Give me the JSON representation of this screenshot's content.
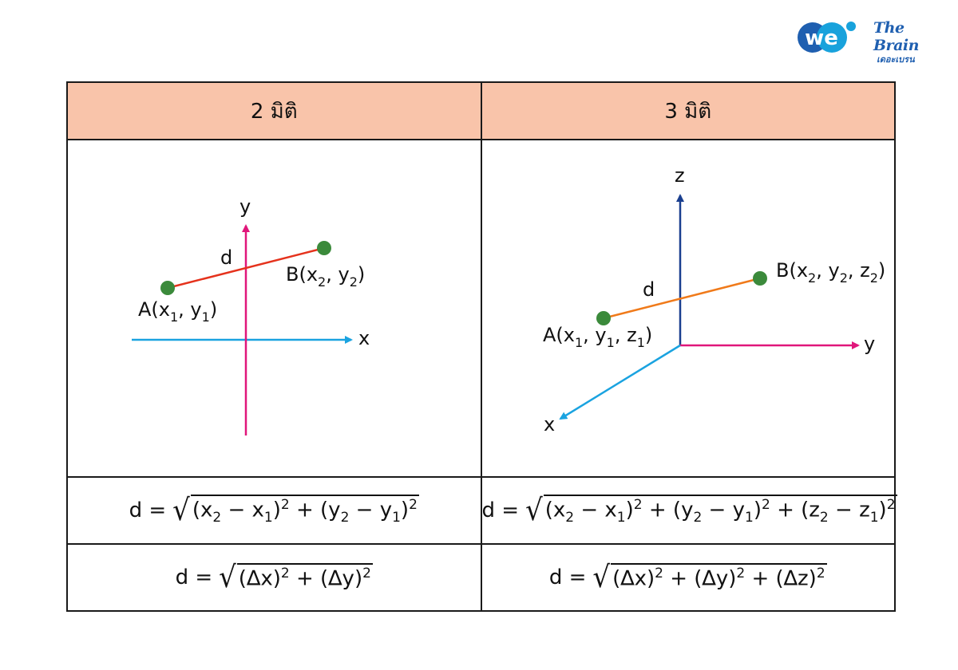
{
  "logos": {
    "we": "we",
    "brain_line1": "The Brain",
    "brain_line2": "เดอะเบรน"
  },
  "headers": [
    "2 มิติ",
    "3 มิติ"
  ],
  "diagram_2d": {
    "axis_x": "x",
    "axis_y": "y",
    "distance": "d",
    "point_a": {
      "prefix": "A(x",
      "sub1": "1",
      "mid": ", y",
      "sub2": "1",
      "suffix": ")"
    },
    "point_b": {
      "prefix": "B(x",
      "sub1": "2",
      "mid": ", y",
      "sub2": "2",
      "suffix": ")"
    }
  },
  "diagram_3d": {
    "axis_x": "x",
    "axis_y": "y",
    "axis_z": "z",
    "distance": "d",
    "point_a": {
      "prefix": "A(x",
      "sub1": "1",
      "mid": ", y",
      "sub2": "1",
      "mid2": ", z",
      "sub3": "1",
      "suffix": ")"
    },
    "point_b": {
      "prefix": "B(x",
      "sub1": "2",
      "mid": ", y",
      "sub2": "2",
      "mid2": ", z",
      "sub3": "2",
      "suffix": ")"
    }
  },
  "colors": {
    "header_bg": "#f9c4aa",
    "x_axis": "#1aa3e0",
    "y_axis_2d": "#e0167a",
    "z_axis": "#1a3f8f",
    "segment_2d": "#e5321c",
    "segment_3d": "#f07a1a",
    "point": "#3b8a3b"
  },
  "formulas": {
    "lhs": "d = ",
    "coord_2d": [
      "(x",
      "2",
      " − x",
      "1",
      ")",
      "2",
      " + (y",
      "2",
      " − y",
      "1",
      ")",
      "2"
    ],
    "coord_3d": [
      "(x",
      "2",
      " − x",
      "1",
      ")",
      "2",
      " + (y",
      "2",
      " − y",
      "1",
      ")",
      "2",
      " + (z",
      "2",
      " − z",
      "1",
      ")",
      "2"
    ],
    "delta_2d": [
      "(∆x)",
      "2",
      " + (∆y)",
      "2"
    ],
    "delta_3d": [
      "(∆x)",
      "2",
      " + (∆y)",
      "2",
      " + (∆z)",
      "2"
    ]
  }
}
